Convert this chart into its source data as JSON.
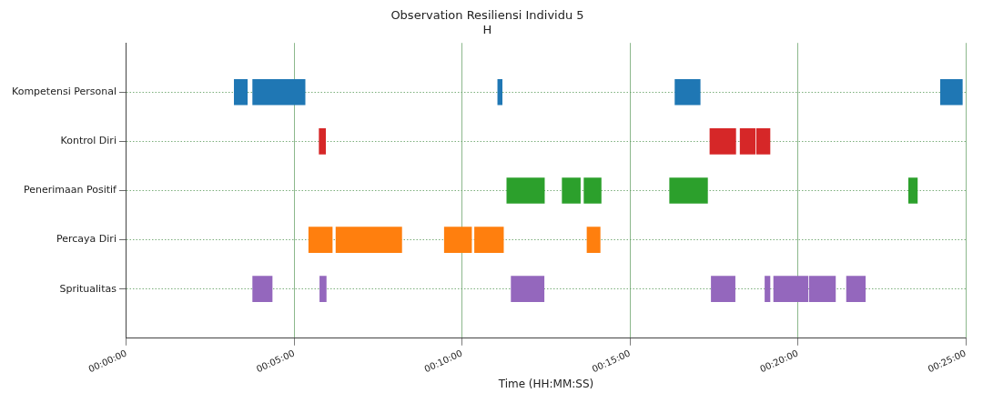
{
  "chart_data": {
    "type": "bar",
    "orientation": "horizontal",
    "title": "Observation Resiliensi Individu 5",
    "subtitle": "H",
    "xlabel": "Time (HH:MM:SS)",
    "categories": [
      "Kompetensi Personal",
      "Kontrol Diri",
      "Penerimaan Positif",
      "Percaya Diri",
      "Spritualitas"
    ],
    "series": [
      {
        "base": [
          3.21,
          5.74,
          11.33,
          5.43,
          3.76
        ],
        "values": [
          0.39,
          0.19,
          1.12,
          0.7,
          0.58
        ],
        "colors": [
          "#1f77b4",
          "#d62728",
          "#2ca02c",
          "#ff7f0e",
          "#9467bd"
        ]
      },
      {
        "base": [
          3.76,
          17.38,
          12.98,
          6.24,
          5.76
        ],
        "values": [
          1.56,
          0.77,
          0.54,
          1.96,
          0.19
        ],
        "colors": [
          "#1f77b4",
          "#d62728",
          "#2ca02c",
          "#ff7f0e",
          "#9467bd"
        ]
      },
      {
        "base": [
          11.06,
          18.28,
          13.63,
          9.47,
          11.46
        ],
        "values": [
          0.13,
          0.45,
          0.51,
          0.81,
          0.98
        ],
        "colors": [
          "#1f77b4",
          "#d62728",
          "#2ca02c",
          "#ff7f0e",
          "#9467bd"
        ]
      },
      {
        "base": [
          16.34,
          18.77,
          16.18,
          10.37,
          17.42
        ],
        "values": [
          0.75,
          0.4,
          1.13,
          0.86,
          0.71
        ],
        "colors": [
          "#1f77b4",
          "#d62728",
          "#2ca02c",
          "#ff7f0e",
          "#9467bd"
        ]
      },
      {
        "base": [
          24.25,
          null,
          23.3,
          13.72,
          19.02
        ],
        "values": [
          0.65,
          null,
          0.26,
          0.39,
          0.15
        ],
        "colors": [
          "#1f77b4",
          null,
          "#2ca02c",
          "#ff7f0e",
          "#9467bd"
        ]
      },
      {
        "base": [
          null,
          null,
          null,
          null,
          19.28
        ],
        "values": [
          null,
          null,
          null,
          null,
          1.02
        ],
        "colors": [
          null,
          null,
          null,
          null,
          "#9467bd"
        ]
      },
      {
        "base": [
          null,
          null,
          null,
          null,
          20.34
        ],
        "values": [
          null,
          null,
          null,
          null,
          0.78
        ],
        "colors": [
          null,
          null,
          null,
          null,
          "#9467bd"
        ]
      },
      {
        "base": [
          null,
          null,
          null,
          null,
          21.45
        ],
        "values": [
          null,
          null,
          null,
          null,
          0.56
        ],
        "colors": [
          null,
          null,
          null,
          null,
          "#9467bd"
        ]
      }
    ],
    "xlim": [
      0,
      25
    ],
    "xticks": [
      {
        "value": 0,
        "label": "00:00:00"
      },
      {
        "value": 5,
        "label": "00:05:00"
      },
      {
        "value": 10,
        "label": "00:10:00"
      },
      {
        "value": 15,
        "label": "00:15:00"
      },
      {
        "value": 20,
        "label": "00:20:00"
      },
      {
        "value": 25,
        "label": "00:25:00"
      }
    ],
    "grid": true
  }
}
